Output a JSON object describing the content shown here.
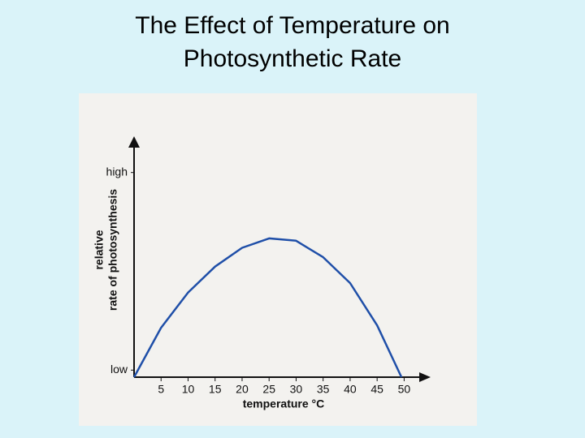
{
  "chart_data": {
    "type": "line",
    "title": [
      "The Effect of Temperature on",
      "Photosynthetic Rate"
    ],
    "xlabel": "temperature °C",
    "ylabel": [
      "relative",
      "rate of photosynthesis"
    ],
    "x": [
      0,
      5,
      10,
      15,
      20,
      25,
      30,
      35,
      40,
      45,
      49.5
    ],
    "values": [
      0,
      21,
      36,
      47,
      55,
      59,
      58,
      51,
      40,
      22,
      0
    ],
    "color": "#1f4fa8",
    "xlim": [
      0,
      54
    ],
    "xticks": [
      5,
      10,
      15,
      20,
      25,
      30,
      35,
      40,
      45,
      50
    ],
    "ylim": [
      0,
      100
    ],
    "yticks": [
      {
        "value": 3,
        "label": "low"
      },
      {
        "value": 87,
        "label": "high"
      }
    ]
  }
}
